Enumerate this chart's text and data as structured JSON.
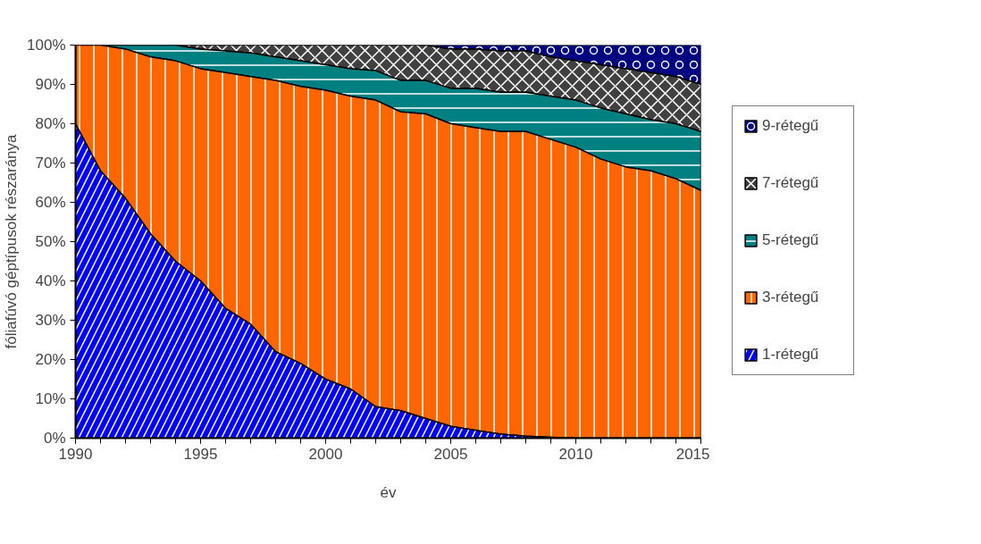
{
  "chart_data": {
    "type": "area",
    "stacked": true,
    "xlabel": "év",
    "ylabel": "fóliafúvó géptípusok részaránya",
    "x": [
      1990,
      1991,
      1992,
      1993,
      1994,
      1995,
      1996,
      1997,
      1998,
      1999,
      2000,
      2001,
      2002,
      2003,
      2004,
      2005,
      2006,
      2007,
      2008,
      2009,
      2010,
      2011,
      2012,
      2013,
      2014,
      2015
    ],
    "series": [
      {
        "name": "1-rétegű",
        "color": "#0000ff",
        "values": [
          80,
          68,
          61,
          52,
          45,
          40,
          33,
          29,
          22,
          19,
          15,
          12.5,
          8,
          7,
          5,
          3,
          2,
          1,
          0.5,
          0.2,
          0,
          0,
          0,
          0,
          0,
          0
        ]
      },
      {
        "name": "3-rétegű",
        "color": "#ff6600",
        "values": [
          20,
          32,
          38,
          45,
          51,
          54,
          60,
          63,
          69,
          70.5,
          73.5,
          74.5,
          78,
          76,
          77.5,
          77,
          77,
          77,
          77.5,
          75.8,
          74,
          71,
          69,
          68,
          66,
          63
        ]
      },
      {
        "name": "5-rétegű",
        "color": "#008080",
        "values": [
          0,
          0,
          1,
          3,
          4,
          5,
          5.5,
          6,
          6,
          6.5,
          6.5,
          7,
          7.5,
          8,
          8.5,
          9,
          10,
          10,
          10,
          11,
          12,
          13,
          13.5,
          13,
          14,
          15
        ]
      },
      {
        "name": "7-rétegű",
        "color": "#404040",
        "values": [
          0,
          0,
          0,
          0,
          0,
          1,
          1.5,
          2,
          3,
          4,
          5,
          6,
          6.5,
          9,
          9,
          10,
          10,
          10.5,
          10.5,
          10,
          10,
          11,
          11.5,
          12,
          12,
          12
        ]
      },
      {
        "name": "9-rétegű",
        "color": "#000080",
        "values": [
          0,
          0,
          0,
          0,
          0,
          0,
          0,
          0,
          0,
          0,
          0,
          0,
          0,
          0,
          0,
          1,
          1,
          1.5,
          1.5,
          3,
          4,
          5,
          6,
          7,
          8,
          10
        ]
      }
    ],
    "xlim": [
      1990,
      2015
    ],
    "xticks": [
      1990,
      1995,
      2000,
      2005,
      2010,
      2015
    ],
    "ylim": [
      0,
      100
    ],
    "yticks": [
      {
        "value": 0,
        "label": "0%"
      },
      {
        "value": 10,
        "label": "10%"
      },
      {
        "value": 20,
        "label": "20%"
      },
      {
        "value": 30,
        "label": "30%"
      },
      {
        "value": 40,
        "label": "40%"
      },
      {
        "value": 50,
        "label": "50%"
      },
      {
        "value": 60,
        "label": "60%"
      },
      {
        "value": 70,
        "label": "70%"
      },
      {
        "value": 80,
        "label": "80%"
      },
      {
        "value": 90,
        "label": "90%"
      },
      {
        "value": 100,
        "label": "100%"
      }
    ],
    "grid": false,
    "legend": "right"
  }
}
